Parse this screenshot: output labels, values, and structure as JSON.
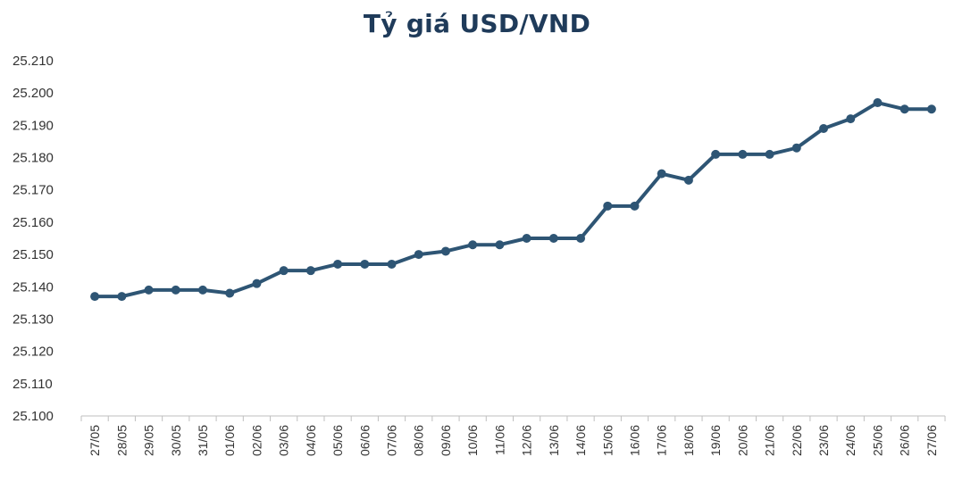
{
  "chart_data": {
    "type": "line",
    "title": "Tỷ giá USD/VND",
    "xlabel": "",
    "ylabel": "",
    "categories": [
      "27/05",
      "28/05",
      "29/05",
      "30/05",
      "31/05",
      "01/06",
      "02/06",
      "03/06",
      "04/06",
      "05/06",
      "06/06",
      "07/06",
      "08/06",
      "09/06",
      "10/06",
      "11/06",
      "12/06",
      "13/06",
      "14/06",
      "15/06",
      "16/06",
      "17/06",
      "18/06",
      "19/06",
      "20/06",
      "21/06",
      "22/06",
      "23/06",
      "24/06",
      "25/06",
      "26/06",
      "27/06"
    ],
    "series": [
      {
        "values": [
          25137,
          25137,
          25139,
          25139,
          25139,
          25138,
          25141,
          25145,
          25145,
          25147,
          25147,
          25147,
          25150,
          25151,
          25153,
          25153,
          25155,
          25155,
          25155,
          25165,
          25165,
          25175,
          25173,
          25181,
          25181,
          25181,
          25183,
          25189,
          25192,
          25197,
          25195,
          25195
        ]
      }
    ],
    "ylim": [
      25100,
      25210
    ],
    "yticks": [
      25100,
      25110,
      25120,
      25130,
      25140,
      25150,
      25160,
      25170,
      25180,
      25190,
      25200,
      25210
    ],
    "ytick_labels": [
      "25.100",
      "25.110",
      "25.120",
      "25.130",
      "25.140",
      "25.150",
      "25.160",
      "25.170",
      "25.180",
      "25.190",
      "25.200",
      "25.210"
    ],
    "grid": false,
    "legend": "none",
    "line_color": "#2e5574"
  }
}
